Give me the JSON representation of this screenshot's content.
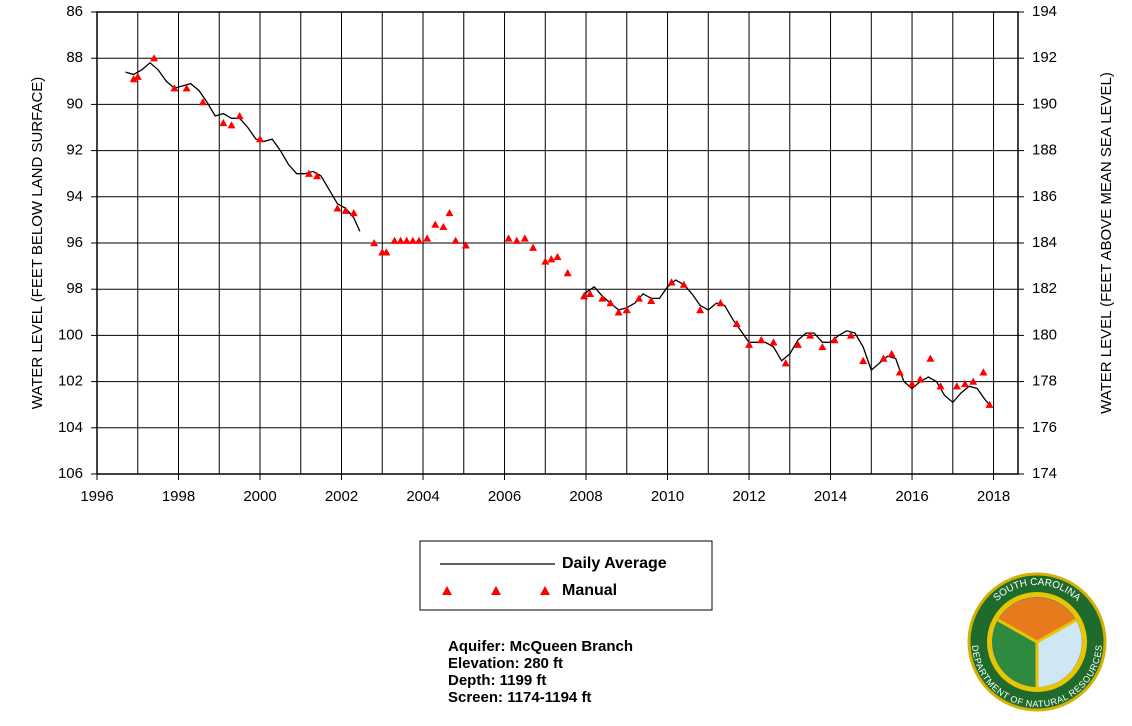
{
  "chart_data": {
    "type": "line",
    "xlabel": null,
    "ylabel": "WATER LEVEL (FEET BELOW LAND SURFACE)",
    "y2label": "WATER LEVEL (FEET ABOVE MEAN SEA LEVEL)",
    "xlim": [
      1996,
      2018.6
    ],
    "xticks": [
      1996,
      1998,
      2000,
      2002,
      2004,
      2006,
      2008,
      2010,
      2012,
      2014,
      2016,
      2018
    ],
    "xminor": [
      1997,
      1999,
      2001,
      2003,
      2005,
      2007,
      2009,
      2011,
      2013,
      2015,
      2017
    ],
    "ylim": [
      86,
      106
    ],
    "yticks": [
      86,
      88,
      90,
      92,
      94,
      96,
      98,
      100,
      102,
      104,
      106
    ],
    "y2lim": [
      194,
      174
    ],
    "y2ticks": [
      194,
      192,
      190,
      188,
      186,
      184,
      182,
      180,
      178,
      176,
      174
    ],
    "grid": true,
    "series": [
      {
        "name": "Daily Average",
        "mark": "line",
        "color": "#000000",
        "x": [
          1996.7,
          1996.9,
          1997.1,
          1997.3,
          1997.5,
          1997.7,
          1997.9,
          1998.1,
          1998.3,
          1998.5,
          1998.7,
          1998.9,
          1999.1,
          1999.3,
          1999.5,
          1999.7,
          1999.9,
          2000.1,
          2000.3,
          2000.5,
          2000.7,
          2000.9,
          2001.1,
          2001.3,
          2001.5,
          2001.7,
          2001.9,
          2002.1,
          2002.3,
          2002.45,
          2005,
          2007.95,
          2008.2,
          2008.4,
          2008.6,
          2008.8,
          2009.0,
          2009.2,
          2009.4,
          2009.6,
          2009.8,
          2010.0,
          2010.2,
          2010.4,
          2010.6,
          2010.8,
          2011.0,
          2011.2,
          2011.4,
          2011.6,
          2011.8,
          2012.0,
          2012.2,
          2012.4,
          2012.6,
          2012.8,
          2013.0,
          2013.2,
          2013.4,
          2013.6,
          2013.8,
          2014.0,
          2014.2,
          2014.4,
          2014.6,
          2014.8,
          2015.0,
          2015.2,
          2015.4,
          2015.6,
          2015.8,
          2016.0,
          2016.2,
          2016.4,
          2016.6,
          2016.8,
          2017.0,
          2017.2,
          2017.4,
          2017.6,
          2017.8,
          2017.95
        ],
        "values": [
          88.6,
          88.7,
          88.5,
          88.2,
          88.5,
          89.0,
          89.3,
          89.2,
          89.1,
          89.4,
          89.9,
          90.5,
          90.4,
          90.6,
          90.6,
          91.0,
          91.5,
          91.6,
          91.5,
          92.0,
          92.6,
          93.0,
          93.0,
          92.9,
          93.1,
          93.7,
          94.3,
          94.5,
          94.9,
          95.5,
          null,
          98.2,
          97.9,
          98.3,
          98.6,
          98.9,
          98.8,
          98.6,
          98.2,
          98.4,
          98.4,
          97.9,
          97.6,
          97.8,
          98.2,
          98.7,
          98.9,
          98.6,
          98.7,
          99.3,
          99.8,
          100.3,
          100.3,
          100.3,
          100.5,
          101.1,
          100.8,
          100.2,
          99.9,
          99.9,
          100.3,
          100.3,
          100.0,
          99.8,
          99.9,
          100.5,
          101.5,
          101.2,
          100.9,
          101.0,
          102.0,
          102.3,
          102.0,
          101.8,
          102.0,
          102.6,
          102.9,
          102.5,
          102.2,
          102.3,
          102.8,
          103.1
        ]
      },
      {
        "name": "Manual",
        "mark": "triangle",
        "color": "#ff0000",
        "x": [
          1996.9,
          1997.0,
          1997.4,
          1997.9,
          1998.2,
          1998.6,
          1999.1,
          1999.3,
          1999.5,
          2000.0,
          2001.2,
          2001.4,
          2001.9,
          2002.1,
          2002.3,
          2002.8,
          2003.0,
          2003.1,
          2003.3,
          2003.45,
          2003.6,
          2003.75,
          2003.9,
          2004.1,
          2004.3,
          2004.5,
          2004.65,
          2004.8,
          2005.05,
          2006.1,
          2006.3,
          2006.5,
          2006.7,
          2007.0,
          2007.15,
          2007.3,
          2007.55,
          2007.95,
          2008.1,
          2008.4,
          2008.6,
          2008.8,
          2009.0,
          2009.3,
          2009.6,
          2010.1,
          2010.4,
          2010.8,
          2011.3,
          2011.7,
          2012.0,
          2012.3,
          2012.6,
          2012.9,
          2013.2,
          2013.5,
          2013.8,
          2014.1,
          2014.5,
          2014.8,
          2015.3,
          2015.5,
          2015.7,
          2016.0,
          2016.2,
          2016.45,
          2016.7,
          2017.1,
          2017.3,
          2017.5,
          2017.75,
          2017.9
        ],
        "values": [
          88.9,
          88.8,
          88.0,
          89.3,
          89.3,
          89.9,
          90.8,
          90.9,
          90.5,
          91.5,
          93.0,
          93.1,
          94.5,
          94.6,
          94.7,
          96.0,
          96.4,
          96.4,
          95.9,
          95.9,
          95.9,
          95.9,
          95.9,
          95.8,
          95.2,
          95.3,
          94.7,
          95.9,
          96.1,
          95.8,
          95.9,
          95.8,
          96.2,
          96.8,
          96.7,
          96.6,
          97.3,
          98.3,
          98.2,
          98.4,
          98.6,
          99.0,
          98.9,
          98.4,
          98.5,
          97.7,
          97.8,
          98.9,
          98.6,
          99.5,
          100.4,
          100.2,
          100.3,
          101.2,
          100.4,
          100.0,
          100.5,
          100.2,
          100.0,
          101.1,
          101.0,
          100.8,
          101.6,
          102.1,
          101.9,
          101.0,
          102.2,
          102.2,
          102.1,
          102.0,
          101.6,
          103.0
        ]
      }
    ],
    "annotations": [
      "Aquifer: McQueen Branch",
      "Elevation: 280 ft",
      "Depth: 1199 ft",
      "Screen: 1174-1194 ft"
    ],
    "logo_text": {
      "top": "SOUTH CAROLINA",
      "bottom": "DEPARTMENT OF NATURAL RESOURCES"
    }
  }
}
